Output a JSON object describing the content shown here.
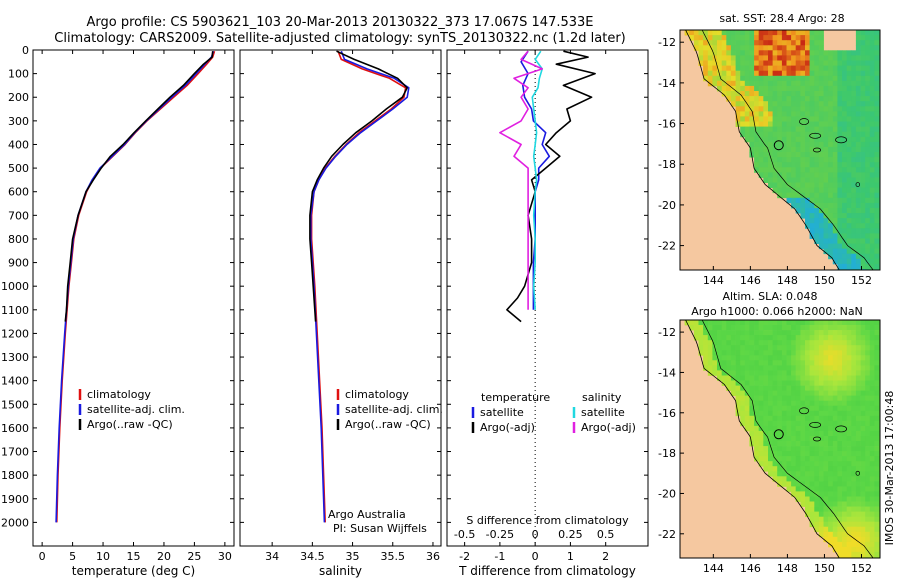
{
  "header": {
    "title_line1": "Argo profile: CS 5903621_103 20-Mar-2013 20130322_373 17.067S 147.533E",
    "title_line2": "Climatology: CARS2009. Satellite-adjusted climatology: synTS_20130322.nc (1.2d later)"
  },
  "side_caption": "IMOS 30-Mar-2013 17:00:48",
  "chart_data": [
    {
      "type": "line",
      "id": "temperature",
      "xlabel": "temperature (deg C)",
      "ylabel": "",
      "xlim": [
        -1.5,
        31.5
      ],
      "ylim": [
        0,
        2100
      ],
      "y_inverted": true,
      "xticks": [
        0,
        5,
        10,
        15,
        20,
        25,
        30
      ],
      "yticks": [
        0,
        100,
        200,
        300,
        400,
        500,
        600,
        700,
        800,
        900,
        1000,
        1100,
        1200,
        1300,
        1400,
        1500,
        1600,
        1700,
        1800,
        1900,
        2000
      ],
      "legend": {
        "placement": "lower-right",
        "entries": [
          "climatology",
          "satellite-adj. clim.",
          "Argo(..raw -QC)"
        ]
      },
      "series": [
        {
          "name": "climatology",
          "color": "#e01010",
          "depth": [
            5,
            30,
            60,
            100,
            150,
            200,
            250,
            300,
            350,
            400,
            450,
            500,
            550,
            600,
            700,
            800,
            900,
            1000,
            1100,
            1200,
            1400,
            1600,
            1800,
            2000
          ],
          "values": [
            28.3,
            28.0,
            27.0,
            25.6,
            23.8,
            21.6,
            19.4,
            17.2,
            15.3,
            13.6,
            11.6,
            9.6,
            8.3,
            7.3,
            6.0,
            5.2,
            4.8,
            4.4,
            4.1,
            3.8,
            3.3,
            2.9,
            2.6,
            2.4
          ]
        },
        {
          "name": "satellite-adj. clim.",
          "color": "#1a1ae0",
          "depth": [
            5,
            30,
            60,
            100,
            150,
            200,
            250,
            300,
            350,
            400,
            450,
            500,
            550,
            600,
            700,
            800,
            900,
            1000,
            1100,
            1200,
            1400,
            1600,
            1800,
            2000
          ],
          "values": [
            28.1,
            27.8,
            26.7,
            25.3,
            23.5,
            21.3,
            19.2,
            17.1,
            15.2,
            13.5,
            11.5,
            9.5,
            8.2,
            7.2,
            5.9,
            5.1,
            4.7,
            4.3,
            4.0,
            3.7,
            3.2,
            2.8,
            2.5,
            2.3
          ]
        },
        {
          "name": "Argo(..raw -QC)",
          "color": "#000000",
          "depth": [
            5,
            30,
            60,
            100,
            150,
            200,
            250,
            300,
            350,
            400,
            450,
            500,
            550,
            600,
            700,
            800,
            900,
            1000,
            1100,
            1150
          ],
          "values": [
            28.0,
            27.9,
            26.5,
            25.0,
            23.2,
            21.0,
            19.0,
            17.0,
            15.1,
            13.3,
            11.2,
            9.7,
            8.4,
            7.2,
            5.9,
            5.0,
            4.6,
            4.2,
            4.0,
            3.8
          ]
        }
      ]
    },
    {
      "type": "line",
      "id": "salinity",
      "xlabel": "salinity",
      "ylabel": "",
      "xlim": [
        33.6,
        36.1
      ],
      "ylim": [
        0,
        2100
      ],
      "y_inverted": true,
      "xticks": [
        34,
        34.5,
        35,
        35.5,
        36
      ],
      "legend": {
        "placement": "lower-right",
        "entries": [
          "climatology",
          "satellite-adj. clim.",
          "Argo(..raw -QC)"
        ]
      },
      "annotation": {
        "line1": "Argo Australia",
        "line2": "PI: Susan Wijffels"
      },
      "series": [
        {
          "name": "climatology",
          "color": "#e01010",
          "depth": [
            5,
            40,
            80,
            120,
            160,
            200,
            250,
            300,
            350,
            400,
            450,
            500,
            550,
            600,
            700,
            800,
            900,
            1000,
            1200,
            1400,
            1600,
            1800,
            2000
          ],
          "values": [
            34.82,
            34.86,
            35.12,
            35.46,
            35.66,
            35.64,
            35.48,
            35.28,
            35.08,
            34.92,
            34.78,
            34.66,
            34.58,
            34.52,
            34.49,
            34.49,
            34.51,
            34.53,
            34.56,
            34.59,
            34.62,
            34.64,
            34.66
          ]
        },
        {
          "name": "satellite-adj. clim.",
          "color": "#1a1ae0",
          "depth": [
            5,
            40,
            80,
            120,
            160,
            200,
            250,
            300,
            350,
            400,
            450,
            500,
            550,
            600,
            700,
            800,
            900,
            1000,
            1200,
            1400,
            1600,
            1800,
            2000
          ],
          "values": [
            34.86,
            34.9,
            35.18,
            35.52,
            35.7,
            35.68,
            35.5,
            35.3,
            35.1,
            34.93,
            34.79,
            34.67,
            34.58,
            34.52,
            34.48,
            34.48,
            34.5,
            34.52,
            34.55,
            34.58,
            34.61,
            34.63,
            34.65
          ]
        },
        {
          "name": "Argo(..raw -QC)",
          "color": "#000000",
          "depth": [
            5,
            40,
            80,
            120,
            160,
            200,
            250,
            300,
            350,
            400,
            450,
            500,
            550,
            600,
            700,
            800,
            900,
            1000,
            1100,
            1150
          ],
          "values": [
            34.8,
            35.02,
            35.32,
            35.56,
            35.68,
            35.62,
            35.42,
            35.24,
            35.04,
            34.88,
            34.74,
            34.64,
            34.56,
            34.5,
            34.47,
            34.47,
            34.49,
            34.51,
            34.53,
            34.54
          ]
        }
      ]
    },
    {
      "type": "line",
      "id": "differences",
      "xlabel": "T difference from climatology",
      "xlabel_top": "S difference from climatology",
      "xlim": [
        -2.5,
        3.2
      ],
      "ylim": [
        0,
        2100
      ],
      "y_inverted": true,
      "xticks": [
        -2,
        -1,
        0,
        1,
        2
      ],
      "s_ticks": [
        -0.5,
        -0.25,
        0,
        0.25,
        0.5
      ],
      "legend": {
        "placement": "lower-right",
        "temperature_header": "temperature",
        "salinity_header": "salinity",
        "entries": [
          "satellite",
          "Argo(-adj)",
          "satellite",
          "Argo(-adj)"
        ]
      },
      "series": [
        {
          "name": "temperature satellite",
          "color": "#1a1ae0",
          "units": "degC",
          "depth": [
            5,
            50,
            100,
            150,
            200,
            250,
            300,
            350,
            400,
            450,
            500,
            550,
            600,
            700,
            800,
            900,
            1000,
            1100
          ],
          "values": [
            -0.2,
            -0.4,
            -0.2,
            -0.35,
            -0.3,
            -0.1,
            -0.05,
            0.3,
            0.2,
            0.4,
            0.1,
            0.1,
            0.0,
            0.0,
            0.0,
            -0.05,
            -0.05,
            -0.05
          ]
        },
        {
          "name": "temperature Argo(-adj)",
          "color": "#000000",
          "units": "degC",
          "depth": [
            5,
            30,
            60,
            100,
            150,
            200,
            250,
            300,
            350,
            400,
            450,
            500,
            550,
            600,
            700,
            800,
            900,
            1000,
            1050,
            1100,
            1150
          ],
          "values": [
            0.8,
            1.5,
            0.6,
            1.7,
            0.8,
            1.6,
            0.9,
            1.0,
            0.6,
            0.3,
            0.7,
            0.3,
            -0.1,
            0.0,
            -0.2,
            -0.1,
            -0.1,
            -0.3,
            -0.5,
            -0.8,
            -0.4
          ]
        },
        {
          "name": "salinity satellite",
          "color": "#20d8e0",
          "units": "psu",
          "depth": [
            5,
            40,
            80,
            120,
            160,
            200,
            250,
            300,
            350,
            400,
            450,
            500,
            550,
            600,
            700,
            800,
            900,
            1000,
            1100
          ],
          "values": [
            0.04,
            0.0,
            0.05,
            0.03,
            0.02,
            -0.02,
            -0.01,
            0.0,
            0.01,
            0.0,
            -0.01,
            0.0,
            0.01,
            0.0,
            -0.01,
            0.0,
            0.0,
            -0.01,
            0.0
          ]
        },
        {
          "name": "salinity Argo(-adj)",
          "color": "#e020e0",
          "units": "psu",
          "depth": [
            5,
            40,
            80,
            120,
            160,
            200,
            250,
            300,
            350,
            400,
            450,
            500,
            550,
            600,
            700,
            800,
            900,
            1000,
            1100
          ],
          "values": [
            -0.05,
            -0.1,
            0.05,
            -0.15,
            -0.05,
            -0.1,
            -0.05,
            -0.1,
            -0.25,
            -0.1,
            -0.15,
            -0.05,
            -0.05,
            -0.05,
            -0.05,
            -0.05,
            -0.05,
            -0.05,
            -0.05
          ]
        }
      ]
    },
    {
      "type": "heatmap",
      "id": "sst_map",
      "title": "sat. SST: 28.4  Argo: 28",
      "xticks": [
        144,
        146,
        148,
        150,
        152
      ],
      "yticks": [
        -12,
        -14,
        -16,
        -18,
        -20,
        -22
      ],
      "xlim": [
        142.2,
        153.0
      ],
      "ylim": [
        -23.2,
        -11.4
      ],
      "argo_position": {
        "lon": 147.533,
        "lat": -17.067
      },
      "land_color": "#f5c8a0"
    },
    {
      "type": "heatmap",
      "id": "sla_map",
      "title_line1": "Altim. SLA: 0.048",
      "title_line2": "Argo h1000: 0.066 h2000: NaN",
      "xticks": [
        144,
        146,
        148,
        150,
        152
      ],
      "yticks": [
        -12,
        -14,
        -16,
        -18,
        -20,
        -22
      ],
      "xlim": [
        142.2,
        153.0
      ],
      "ylim": [
        -23.2,
        -11.4
      ],
      "argo_position": {
        "lon": 147.533,
        "lat": -17.067
      },
      "land_color": "#f5c8a0"
    }
  ]
}
